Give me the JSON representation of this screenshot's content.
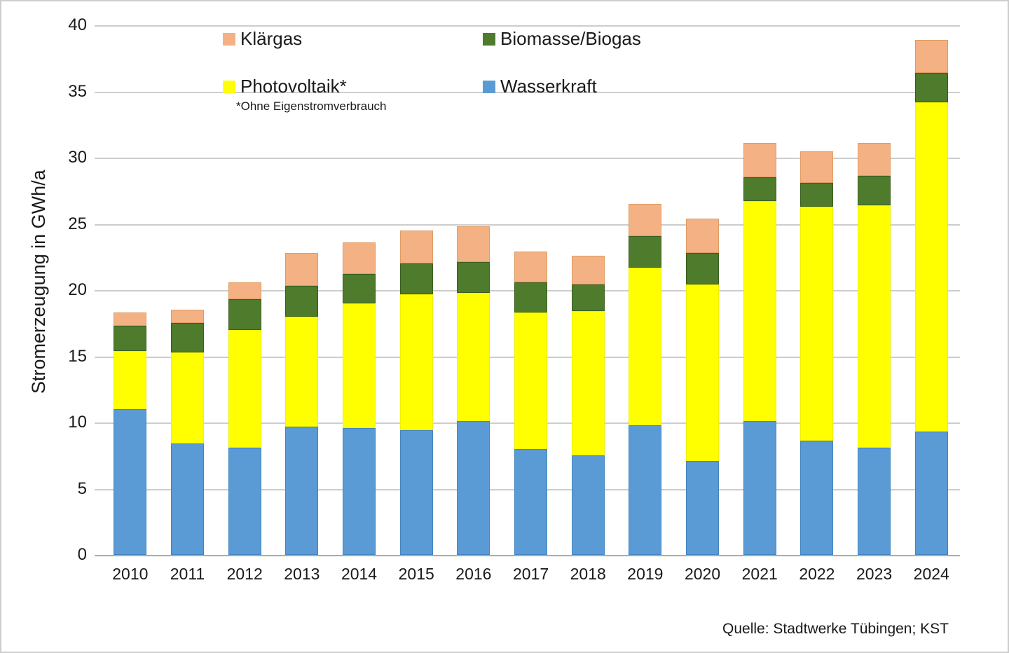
{
  "source": "Quelle: Stadtwerke Tübingen; KST",
  "chart_data": {
    "type": "bar",
    "stacked": true,
    "title": "",
    "xlabel": "",
    "ylabel": "Stromerzeugung in GWh/a",
    "ylim": [
      0,
      40
    ],
    "yticks": [
      0,
      5,
      10,
      15,
      20,
      25,
      30,
      35,
      40
    ],
    "grid": "horizontal",
    "legend_position": "top-inside-two-rows",
    "legend_footnote": "*Ohne Eigenstromverbrauch",
    "categories": [
      "2010",
      "2011",
      "2012",
      "2013",
      "2014",
      "2015",
      "2016",
      "2017",
      "2018",
      "2019",
      "2020",
      "2021",
      "2022",
      "2023",
      "2024"
    ],
    "series": [
      {
        "name": "Wasserkraft",
        "color": "#5B9BD5",
        "border": "#4384BE",
        "values": [
          11.0,
          8.4,
          8.1,
          9.7,
          9.6,
          9.4,
          10.1,
          8.0,
          7.5,
          9.8,
          7.1,
          10.1,
          8.6,
          8.1,
          9.3
        ]
      },
      {
        "name": "Photovoltaik*",
        "color": "#FFFF00",
        "border": "#F0F000",
        "values": [
          4.4,
          6.9,
          8.9,
          8.3,
          9.4,
          10.3,
          9.7,
          10.3,
          10.9,
          11.9,
          13.3,
          16.6,
          17.7,
          18.3,
          24.9
        ]
      },
      {
        "name": "Biomasse/Biogas",
        "color": "#4E7B2C",
        "border": "#3A5E20",
        "values": [
          1.9,
          2.2,
          2.3,
          2.3,
          2.2,
          2.3,
          2.3,
          2.3,
          2.0,
          2.4,
          2.4,
          1.8,
          1.8,
          2.2,
          2.2
        ]
      },
      {
        "name": "Klärgas",
        "color": "#F4B183",
        "border": "#E09C64",
        "values": [
          1.0,
          1.0,
          1.3,
          2.5,
          2.4,
          2.5,
          2.7,
          2.3,
          2.2,
          2.4,
          2.6,
          2.6,
          2.4,
          2.5,
          2.5
        ]
      }
    ],
    "totals": [
      18.3,
      18.5,
      20.6,
      22.8,
      23.6,
      24.5,
      24.8,
      22.9,
      22.6,
      26.5,
      25.4,
      31.1,
      30.5,
      31.1,
      38.9
    ]
  }
}
